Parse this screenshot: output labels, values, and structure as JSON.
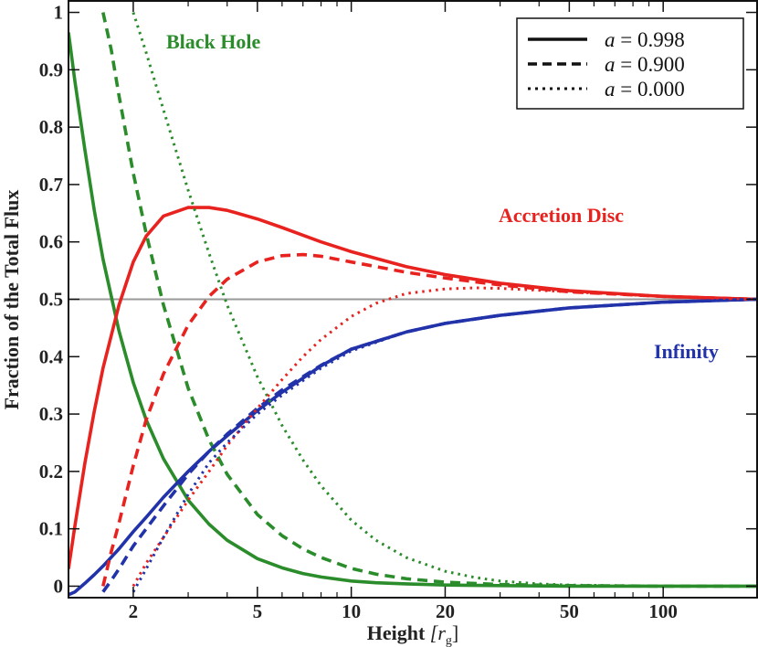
{
  "chart_data": {
    "type": "line",
    "title": "",
    "xlabel_main": "Height",
    "xlabel_unit": "[r",
    "xlabel_sub": "g",
    "xlabel_close": "]",
    "ylabel": "Fraction of the Total Flux",
    "xscale": "log",
    "xlim": [
      1.24,
      200
    ],
    "ylim": [
      -0.02,
      1.02
    ],
    "x_ticks": [
      2,
      5,
      10,
      20,
      50,
      100
    ],
    "x_tick_labels": [
      "2",
      "5",
      "10",
      "20",
      "50",
      "100"
    ],
    "y_ticks": [
      0,
      0.1,
      0.2,
      0.3,
      0.4,
      0.5,
      0.6,
      0.7,
      0.8,
      0.9,
      1
    ],
    "y_tick_labels": [
      "0",
      "0.1",
      "0.2",
      "0.3",
      "0.4",
      "0.5",
      "0.6",
      "0.7",
      "0.8",
      "0.9",
      "1"
    ],
    "reference_line": {
      "y": 0.5,
      "color": "#999999"
    },
    "colors": {
      "black_hole": "#2a8c2a",
      "accretion_disc": "#e8231f",
      "infinity": "#2233aa"
    },
    "annotations": [
      {
        "text": "Black Hole",
        "component": "black_hole"
      },
      {
        "text": "Accretion Disc",
        "component": "accretion_disc"
      },
      {
        "text": "Infinity",
        "component": "infinity"
      }
    ],
    "legend": {
      "placement": "top-right",
      "entries": [
        {
          "label": "a = 0.998",
          "var": "a",
          "eq": " = 0.998",
          "style": "solid"
        },
        {
          "label": "a = 0.900",
          "var": "a",
          "eq": " = 0.900",
          "style": "dashed"
        },
        {
          "label": "a = 0.000",
          "var": "a",
          "eq": " = 0.000",
          "style": "dotted"
        }
      ]
    },
    "series": [
      {
        "name": "Black Hole, a = 0.998",
        "component": "black_hole",
        "style": "solid",
        "x": [
          1.24,
          1.3,
          1.4,
          1.5,
          1.6,
          1.8,
          2.0,
          2.2,
          2.5,
          3.0,
          3.5,
          4.0,
          5.0,
          6.0,
          7.0,
          8.0,
          10,
          12,
          15,
          20,
          30,
          50,
          100,
          200
        ],
        "y": [
          0.965,
          0.88,
          0.76,
          0.655,
          0.57,
          0.445,
          0.355,
          0.29,
          0.222,
          0.15,
          0.108,
          0.08,
          0.048,
          0.032,
          0.022,
          0.016,
          0.009,
          0.006,
          0.004,
          0.002,
          0.001,
          0.0,
          0.0,
          0.0
        ]
      },
      {
        "name": "Accretion Disc, a = 0.998",
        "component": "accretion_disc",
        "style": "solid",
        "x": [
          1.24,
          1.3,
          1.4,
          1.5,
          1.6,
          1.8,
          2.0,
          2.2,
          2.5,
          3.0,
          3.5,
          4.0,
          5.0,
          6.0,
          8.0,
          10,
          15,
          20,
          30,
          50,
          100,
          200
        ],
        "y": [
          0.03,
          0.105,
          0.215,
          0.305,
          0.38,
          0.49,
          0.565,
          0.61,
          0.645,
          0.66,
          0.66,
          0.655,
          0.64,
          0.625,
          0.6,
          0.583,
          0.557,
          0.543,
          0.528,
          0.515,
          0.505,
          0.5
        ]
      },
      {
        "name": "Infinity, a = 0.998",
        "component": "infinity",
        "style": "solid",
        "x": [
          1.24,
          1.3,
          1.4,
          1.5,
          1.6,
          1.8,
          2.0,
          2.2,
          2.5,
          3.0,
          3.5,
          4.0,
          5.0,
          6.0,
          8.0,
          10,
          15,
          20,
          30,
          50,
          100,
          200
        ],
        "y": [
          -0.015,
          -0.01,
          0.005,
          0.02,
          0.035,
          0.065,
          0.095,
          0.12,
          0.155,
          0.2,
          0.235,
          0.262,
          0.306,
          0.338,
          0.384,
          0.413,
          0.443,
          0.458,
          0.472,
          0.485,
          0.495,
          0.5
        ]
      },
      {
        "name": "Black Hole, a = 0.900",
        "component": "black_hole",
        "style": "dashed",
        "x": [
          1.6,
          1.7,
          1.8,
          2.0,
          2.2,
          2.5,
          3.0,
          3.5,
          4.0,
          5.0,
          6.0,
          7.0,
          8.0,
          10,
          12,
          15,
          20,
          30,
          50,
          100,
          200
        ],
        "y": [
          1.0,
          0.935,
          0.855,
          0.72,
          0.615,
          0.49,
          0.345,
          0.255,
          0.195,
          0.125,
          0.088,
          0.065,
          0.05,
          0.031,
          0.021,
          0.013,
          0.007,
          0.003,
          0.001,
          0.0,
          0.0
        ]
      },
      {
        "name": "Accretion Disc, a = 0.900",
        "component": "accretion_disc",
        "style": "dashed",
        "x": [
          1.6,
          1.7,
          1.8,
          2.0,
          2.2,
          2.5,
          3.0,
          3.5,
          4.0,
          5.0,
          6.0,
          7.0,
          8.0,
          10,
          12,
          15,
          20,
          30,
          50,
          100,
          200
        ],
        "y": [
          0.0,
          0.06,
          0.11,
          0.21,
          0.29,
          0.37,
          0.455,
          0.505,
          0.535,
          0.565,
          0.576,
          0.578,
          0.575,
          0.565,
          0.557,
          0.547,
          0.537,
          0.525,
          0.513,
          0.505,
          0.5
        ]
      },
      {
        "name": "Infinity, a = 0.900",
        "component": "infinity",
        "style": "dashed",
        "x": [
          1.6,
          1.7,
          1.8,
          2.0,
          2.2,
          2.5,
          3.0,
          3.5,
          4.0,
          5.0,
          6.0,
          8.0,
          10,
          15,
          20,
          30,
          50,
          100,
          200
        ],
        "y": [
          -0.01,
          0.01,
          0.03,
          0.07,
          0.1,
          0.14,
          0.195,
          0.235,
          0.265,
          0.31,
          0.342,
          0.385,
          0.413,
          0.443,
          0.458,
          0.472,
          0.485,
          0.495,
          0.5
        ]
      },
      {
        "name": "Black Hole, a = 0.000",
        "component": "black_hole",
        "style": "dotted",
        "x": [
          2.0,
          2.2,
          2.5,
          3.0,
          3.5,
          4.0,
          5.0,
          6.0,
          7.0,
          8.0,
          10,
          12,
          15,
          20,
          25,
          30,
          40,
          50,
          100,
          200
        ],
        "y": [
          1.0,
          0.93,
          0.83,
          0.69,
          0.58,
          0.49,
          0.365,
          0.28,
          0.22,
          0.175,
          0.115,
          0.08,
          0.05,
          0.026,
          0.015,
          0.009,
          0.004,
          0.002,
          0.0,
          0.0
        ]
      },
      {
        "name": "Accretion Disc, a = 0.000",
        "component": "accretion_disc",
        "style": "dotted",
        "x": [
          2.0,
          2.2,
          2.5,
          3.0,
          3.5,
          4.0,
          5.0,
          6.0,
          7.0,
          8.0,
          10,
          12,
          15,
          20,
          25,
          30,
          50,
          100,
          200
        ],
        "y": [
          0.0,
          0.04,
          0.085,
          0.15,
          0.2,
          0.245,
          0.31,
          0.36,
          0.4,
          0.43,
          0.47,
          0.493,
          0.51,
          0.518,
          0.52,
          0.519,
          0.513,
          0.505,
          0.5
        ]
      },
      {
        "name": "Infinity, a = 0.000",
        "component": "infinity",
        "style": "dotted",
        "x": [
          2.0,
          2.2,
          2.5,
          3.0,
          3.5,
          4.0,
          5.0,
          6.0,
          8.0,
          10,
          15,
          20,
          30,
          50,
          100,
          200
        ],
        "y": [
          -0.01,
          0.03,
          0.085,
          0.16,
          0.215,
          0.25,
          0.3,
          0.333,
          0.38,
          0.41,
          0.443,
          0.458,
          0.472,
          0.485,
          0.495,
          0.5
        ]
      }
    ]
  }
}
